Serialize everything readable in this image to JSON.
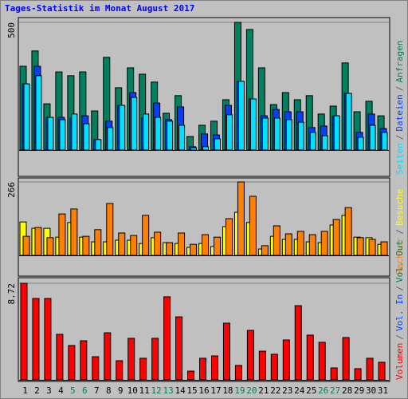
{
  "chart_data": [
    {
      "type": "bar",
      "title": "Tages-Statistik im Monat August 2017",
      "categories": [
        "1",
        "2",
        "3",
        "4",
        "5",
        "6",
        "7",
        "8",
        "9",
        "10",
        "11",
        "12",
        "13",
        "14",
        "15",
        "16",
        "17",
        "18",
        "19",
        "20",
        "21",
        "22",
        "23",
        "24",
        "25",
        "26",
        "27",
        "28",
        "29",
        "30",
        "31"
      ],
      "weekend_color": "#008060",
      "weekend": [
        5,
        6,
        12,
        13,
        19,
        20,
        26,
        27
      ],
      "ylim": [
        0,
        500
      ],
      "yticks": [
        500
      ],
      "legend_separator": "/",
      "series": [
        {
          "name": "Anfragen",
          "color": "#008060",
          "values": [
            328,
            388,
            181,
            306,
            291,
            306,
            153,
            363,
            244,
            322,
            297,
            266,
            144,
            213,
            53,
            97,
            113,
            197,
            500,
            472,
            322,
            178,
            225,
            197,
            213,
            141,
            172,
            341,
            150,
            191,
            134
          ]
        },
        {
          "name": "Dateien",
          "color": "#0040ff",
          "values": [
            259,
            328,
            128,
            128,
            125,
            134,
            41,
            113,
            175,
            225,
            125,
            184,
            119,
            169,
            13,
            63,
            59,
            175,
            269,
            200,
            134,
            159,
            150,
            150,
            88,
            94,
            134,
            222,
            69,
            141,
            84
          ]
        },
        {
          "name": "Seiten",
          "color": "#00e0ff",
          "values": [
            259,
            291,
            128,
            119,
            141,
            103,
            41,
            88,
            175,
            206,
            141,
            128,
            113,
            97,
            9,
            13,
            44,
            138,
            269,
            200,
            125,
            125,
            119,
            109,
            69,
            56,
            134,
            222,
            50,
            97,
            69
          ]
        }
      ]
    },
    {
      "type": "bar",
      "ylim": [
        0,
        266
      ],
      "yticks": [
        266
      ],
      "legend_separator": "/",
      "series": [
        {
          "name": "Besuche",
          "color": "#ffff00",
          "values": [
            121,
            98,
            98,
            66,
            119,
            66,
            49,
            49,
            55,
            55,
            43,
            64,
            46,
            43,
            29,
            43,
            32,
            104,
            156,
            119,
            23,
            69,
            58,
            58,
            49,
            46,
            110,
            145,
            66,
            64,
            40
          ]
        },
        {
          "name": "Rechner",
          "color": "#ff8000",
          "values": [
            69,
            101,
            64,
            150,
            168,
            69,
            93,
            188,
            81,
            72,
            145,
            84,
            46,
            81,
            40,
            75,
            66,
            133,
            266,
            214,
            35,
            107,
            78,
            87,
            75,
            87,
            130,
            173,
            64,
            58,
            49
          ]
        }
      ]
    },
    {
      "type": "bar",
      "ylim": [
        0,
        8.72
      ],
      "yticks": [
        8.72
      ],
      "legend_separator": "/",
      "series": [
        {
          "name": "Volumen",
          "color": "#ff0000",
          "values": [
            8.72,
            7.35,
            7.35,
            4.11,
            3.1,
            3.53,
            2.09,
            4.25,
            1.73,
            3.75,
            1.95,
            3.75,
            7.5,
            5.69,
            0.79,
            1.95,
            2.16,
            5.12,
            1.3,
            4.47,
            2.59,
            2.31,
            3.6,
            6.7,
            4.04,
            3.39,
            1.08,
            3.82,
            1.01,
            1.95,
            1.59
          ]
        }
      ],
      "legend_extra": [
        {
          "name": "Vol. In",
          "color": "#0040ff"
        },
        {
          "name": "Vol. Out",
          "color": "#00805c"
        }
      ]
    }
  ]
}
